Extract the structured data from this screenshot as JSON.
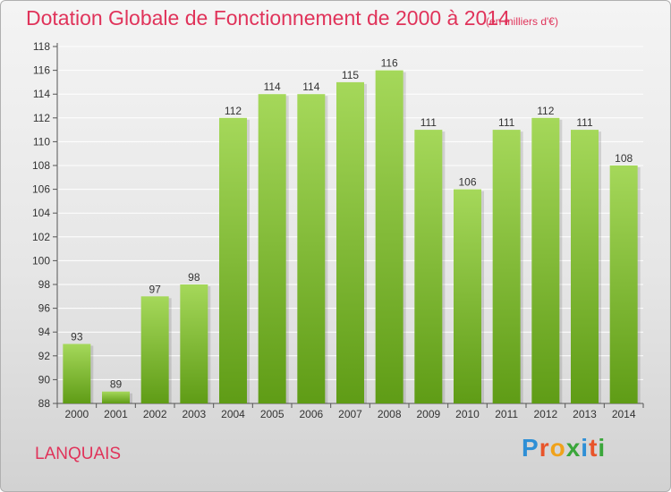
{
  "title": "Dotation Globale de Fonctionnement de 2000 à 2014",
  "unit_note": "(en milliers d'€)",
  "commune": "LANQUAIS",
  "logo": {
    "text": "Proxiti",
    "letters": [
      {
        "ch": "P",
        "color": "#2e8fd6"
      },
      {
        "ch": "r",
        "color": "#e8542a"
      },
      {
        "ch": "o",
        "color": "#f0a21a"
      },
      {
        "ch": "x",
        "color": "#3aa63a"
      },
      {
        "ch": "i",
        "color": "#2e8fd6"
      },
      {
        "ch": "t",
        "color": "#e8542a"
      },
      {
        "ch": "i",
        "color": "#3aa63a"
      }
    ]
  },
  "colors": {
    "bar_top": "#a5d85a",
    "bar_bottom": "#5f9c16",
    "title": "#e0335a",
    "grid": "#ffffff"
  },
  "chart_data": {
    "type": "bar",
    "title": "Dotation Globale de Fonctionnement de 2000 à 2014",
    "subtitle": "(en milliers d'€)",
    "categories": [
      "2000",
      "2001",
      "2002",
      "2003",
      "2004",
      "2005",
      "2006",
      "2007",
      "2008",
      "2009",
      "2010",
      "2011",
      "2012",
      "2013",
      "2014"
    ],
    "values": [
      93,
      89,
      97,
      98,
      112,
      114,
      114,
      115,
      116,
      111,
      106,
      111,
      112,
      111,
      108
    ],
    "ylim": [
      88,
      118
    ],
    "yticks": [
      88,
      90,
      92,
      94,
      96,
      98,
      100,
      102,
      104,
      106,
      108,
      110,
      112,
      114,
      116,
      118
    ],
    "grid": true,
    "legend": "none"
  }
}
